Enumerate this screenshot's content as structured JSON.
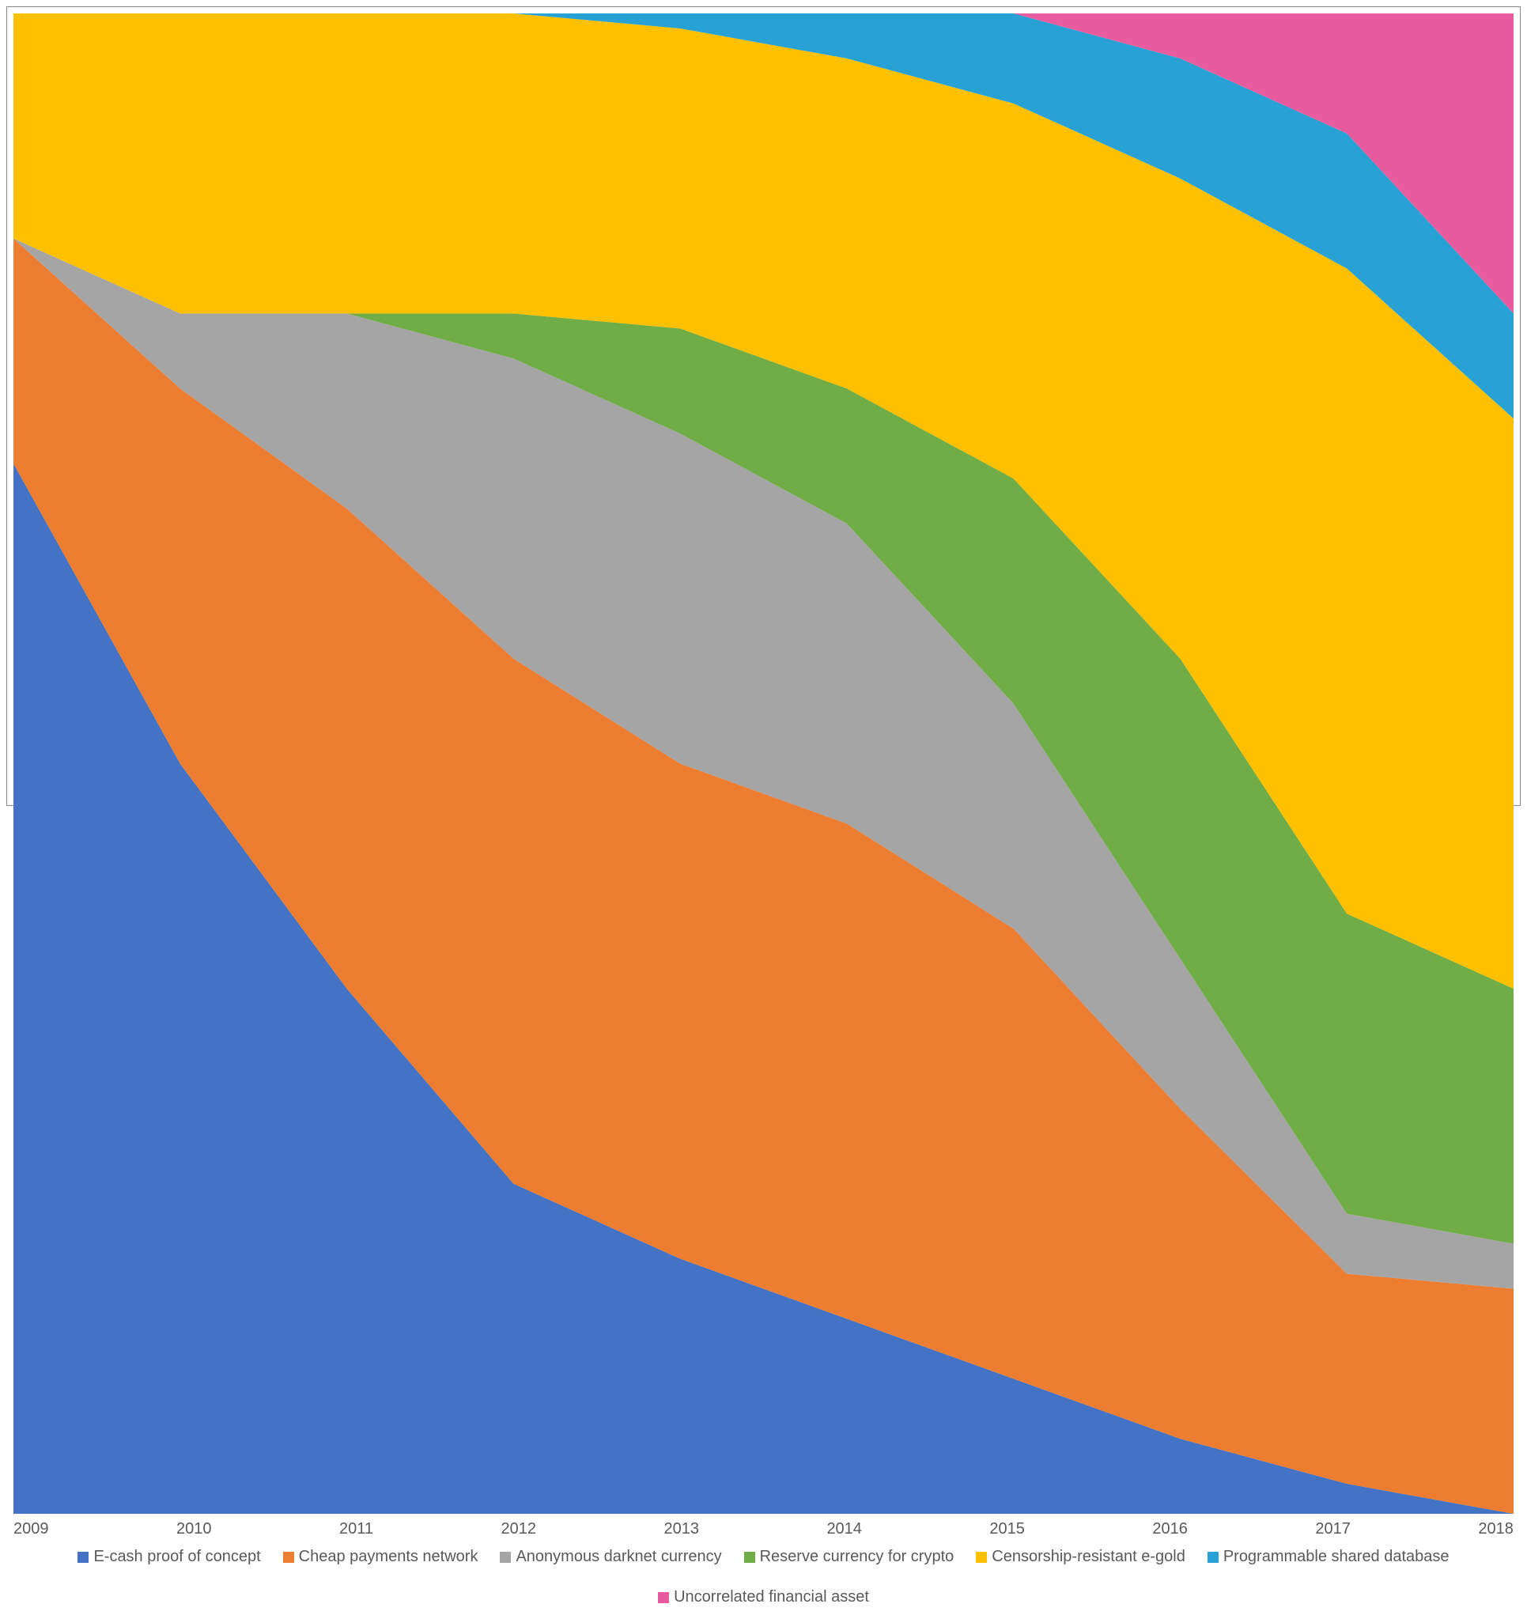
{
  "chart": {
    "type": "stacked-area-100",
    "background_color": "#ffffff",
    "border_color": "#888888",
    "axis_text_color": "#595959",
    "axis_fontsize": 20,
    "legend_fontsize": 20,
    "x_categories": [
      "2009",
      "2010",
      "2011",
      "2012",
      "2013",
      "2014",
      "2015",
      "2016",
      "2017",
      "2018"
    ],
    "series": [
      {
        "name": "E-cash proof of concept",
        "color": "#4472c4",
        "values": [
          70,
          50,
          35,
          22,
          17,
          13,
          9,
          5,
          2,
          0
        ]
      },
      {
        "name": "Cheap payments network",
        "color": "#ed7d31",
        "values": [
          15,
          25,
          32,
          35,
          33,
          33,
          30,
          22,
          14,
          15
        ]
      },
      {
        "name": "Anonymous darknet currency",
        "color": "#a5a5a5",
        "values": [
          0,
          5,
          13,
          20,
          22,
          20,
          15,
          10,
          4,
          3
        ]
      },
      {
        "name": "Reserve currency for crypto",
        "color": "#70ad47",
        "values": [
          0,
          0,
          0,
          3,
          7,
          9,
          15,
          20,
          20,
          17
        ]
      },
      {
        "name": "Censorship-resistant e-gold",
        "color": "#ffc000",
        "values": [
          15,
          20,
          20,
          20,
          20,
          22,
          25,
          32,
          43,
          38
        ]
      },
      {
        "name": "Programmable shared database",
        "color": "#28a2d4",
        "values": [
          0,
          0,
          0,
          0,
          1,
          3,
          6,
          8,
          9,
          7
        ]
      },
      {
        "name": "Uncorrelated financial asset",
        "color": "#e85b9e",
        "values": [
          0,
          0,
          0,
          0,
          0,
          0,
          0,
          3,
          8,
          20
        ]
      }
    ]
  }
}
